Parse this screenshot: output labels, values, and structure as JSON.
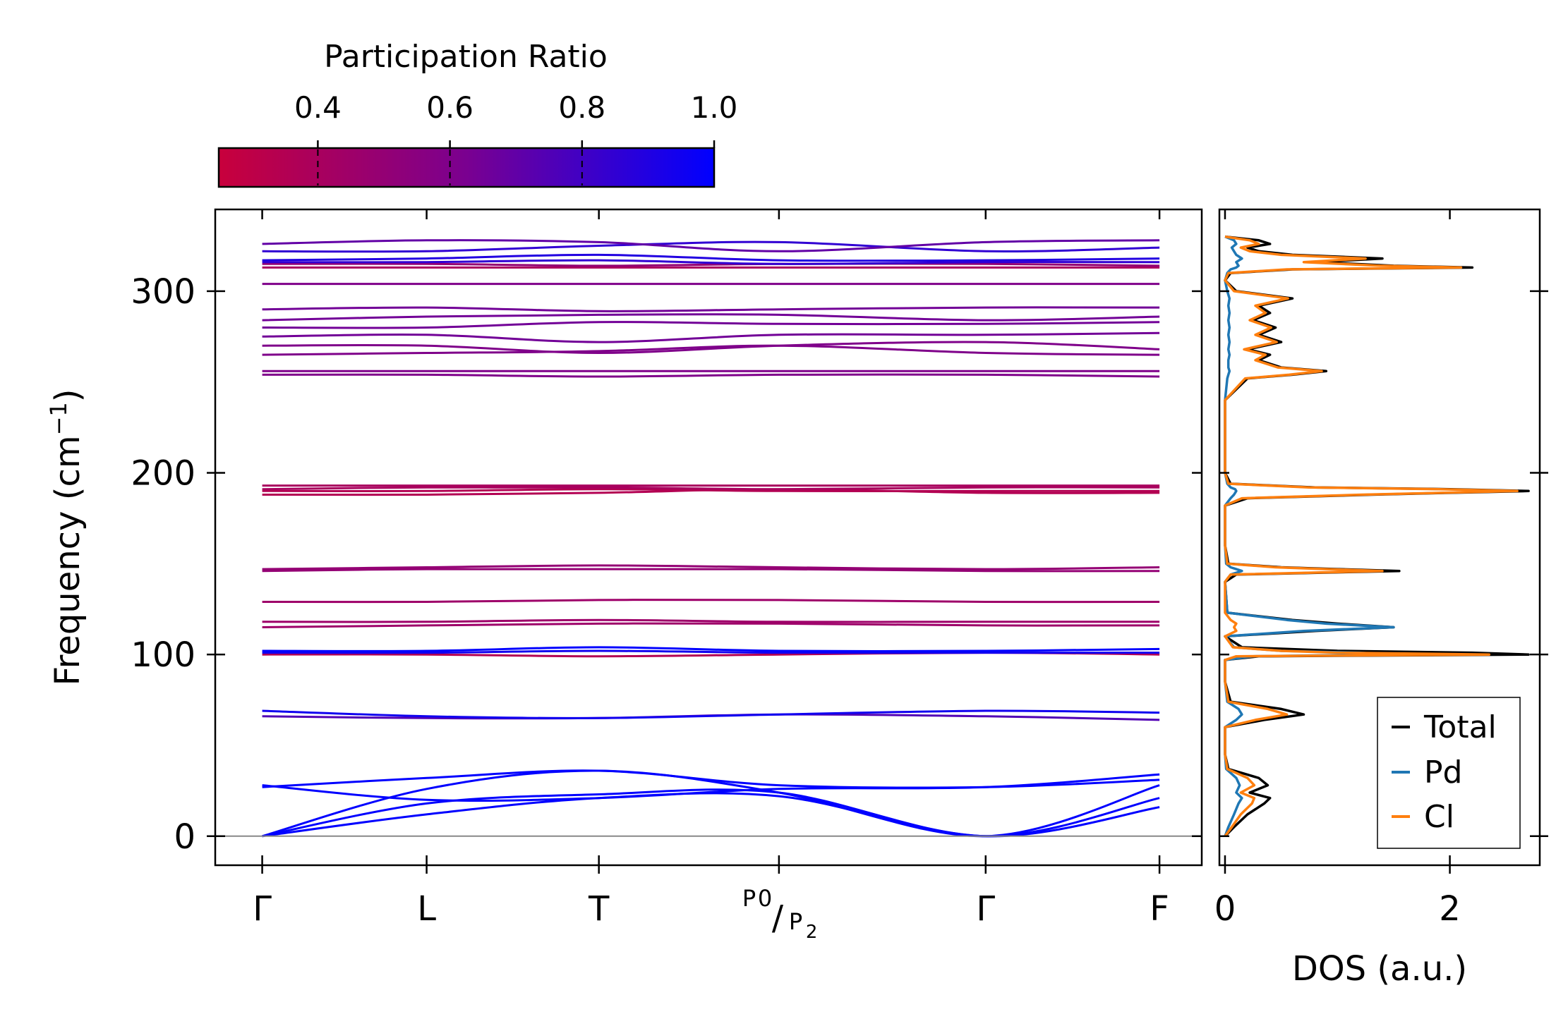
{
  "colorbar": {
    "title": "Participation Ratio",
    "ticks": [
      "0.4",
      "0.6",
      "0.8",
      "1.0"
    ],
    "range": [
      0.25,
      1.0
    ],
    "color_low": "#c8003c",
    "color_mid": "#7a0090",
    "color_high": "#0000ff"
  },
  "chart_data": [
    {
      "type": "line",
      "name": "phonon_band_structure",
      "ylabel": "Frequency (cm",
      "ylabel_sup": "−1",
      "ylabel_end": ")",
      "ylim": [
        -16,
        345
      ],
      "yticks": [
        0,
        100,
        200,
        300
      ],
      "ytick_labels": [
        "0",
        "100",
        "200",
        "300"
      ],
      "xlim": [
        -0.3,
        6.0
      ],
      "kpoints": [
        0,
        1.05,
        2.15,
        3.3,
        4.62,
        5.73
      ],
      "kpoint_labels": [
        "Γ",
        "L",
        "T",
        "P",
        "Γ",
        "F"
      ],
      "special_label": {
        "top": "P",
        "top_sub": "0",
        "sep": "/",
        "bottom": "P",
        "bottom_sub": "2"
      },
      "zero_line": 0,
      "bands": [
        {
          "x": [
            0,
            1.05,
            2.15,
            3.3,
            4.62,
            5.73
          ],
          "y": [
            0,
            12,
            21,
            22,
            0,
            16
          ],
          "pr": 1.0
        },
        {
          "x": [
            0,
            1.05,
            2.15,
            3.3,
            4.62,
            5.73
          ],
          "y": [
            0,
            18,
            23,
            24,
            0,
            21
          ],
          "pr": 1.0
        },
        {
          "x": [
            0,
            1.05,
            2.15,
            3.3,
            4.62,
            5.73
          ],
          "y": [
            0,
            26,
            36,
            24,
            0,
            28
          ],
          "pr": 1.0
        },
        {
          "x": [
            0,
            1.05,
            2.15,
            3.3,
            4.62,
            5.73
          ],
          "y": [
            27,
            32,
            36,
            28,
            27,
            31
          ],
          "pr": 1.0
        },
        {
          "x": [
            0,
            1.05,
            2.15,
            3.3,
            4.62,
            5.73
          ],
          "y": [
            28,
            20,
            21,
            26,
            27,
            34
          ],
          "pr": 1.0
        },
        {
          "x": [
            0,
            1.05,
            2.15,
            3.3,
            4.62,
            5.73
          ],
          "y": [
            66,
            65,
            65,
            67,
            66,
            64
          ],
          "pr": 0.75
        },
        {
          "x": [
            0,
            1.05,
            2.15,
            3.3,
            4.62,
            5.73
          ],
          "y": [
            69,
            66,
            65,
            67,
            69,
            68
          ],
          "pr": 0.95
        },
        {
          "x": [
            0,
            1.05,
            2.15,
            3.3,
            4.62,
            5.73
          ],
          "y": [
            100,
            100,
            99,
            100,
            101,
            100
          ],
          "pr": 0.35
        },
        {
          "x": [
            0,
            1.05,
            2.15,
            3.3,
            4.62,
            5.73
          ],
          "y": [
            101,
            101,
            102,
            101,
            101,
            101
          ],
          "pr": 0.95
        },
        {
          "x": [
            0,
            1.05,
            2.15,
            3.3,
            4.62,
            5.73
          ],
          "y": [
            102,
            102,
            104,
            102,
            102,
            103
          ],
          "pr": 1.0
        },
        {
          "x": [
            0,
            1.05,
            2.15,
            3.3,
            4.62,
            5.73
          ],
          "y": [
            115,
            116,
            117,
            117,
            116,
            116
          ],
          "pr": 0.45
        },
        {
          "x": [
            0,
            1.05,
            2.15,
            3.3,
            4.62,
            5.73
          ],
          "y": [
            118,
            118,
            119,
            118,
            118,
            118
          ],
          "pr": 0.45
        },
        {
          "x": [
            0,
            1.05,
            2.15,
            3.3,
            4.62,
            5.73
          ],
          "y": [
            129,
            129,
            130,
            130,
            129,
            129
          ],
          "pr": 0.45
        },
        {
          "x": [
            0,
            1.05,
            2.15,
            3.3,
            4.62,
            5.73
          ],
          "y": [
            146,
            147,
            147,
            147,
            146,
            146
          ],
          "pr": 0.5
        },
        {
          "x": [
            0,
            1.05,
            2.15,
            3.3,
            4.62,
            5.73
          ],
          "y": [
            147,
            148,
            149,
            148,
            147,
            148
          ],
          "pr": 0.5
        },
        {
          "x": [
            0,
            1.05,
            2.15,
            3.3,
            4.62,
            5.73
          ],
          "y": [
            188,
            188,
            189,
            191,
            189,
            189
          ],
          "pr": 0.35
        },
        {
          "x": [
            0,
            1.05,
            2.15,
            3.3,
            4.62,
            5.73
          ],
          "y": [
            190,
            190,
            191,
            190,
            190,
            190
          ],
          "pr": 0.35
        },
        {
          "x": [
            0,
            1.05,
            2.15,
            3.3,
            4.62,
            5.73
          ],
          "y": [
            191,
            192,
            192,
            191,
            192,
            192
          ],
          "pr": 0.4
        },
        {
          "x": [
            0,
            1.05,
            2.15,
            3.3,
            4.62,
            5.73
          ],
          "y": [
            193,
            193,
            193,
            193,
            193,
            193
          ],
          "pr": 0.4
        },
        {
          "x": [
            0,
            1.05,
            2.15,
            3.3,
            4.62,
            5.73
          ],
          "y": [
            254,
            254,
            253,
            254,
            254,
            253
          ],
          "pr": 0.6
        },
        {
          "x": [
            0,
            1.05,
            2.15,
            3.3,
            4.62,
            5.73
          ],
          "y": [
            256,
            256,
            256,
            256,
            256,
            256
          ],
          "pr": 0.6
        },
        {
          "x": [
            0,
            1.05,
            2.15,
            3.3,
            4.62,
            5.73
          ],
          "y": [
            265,
            266,
            267,
            270,
            266,
            265
          ],
          "pr": 0.6
        },
        {
          "x": [
            0,
            1.05,
            2.15,
            3.3,
            4.62,
            5.73
          ],
          "y": [
            270,
            270,
            266,
            270,
            272,
            268
          ],
          "pr": 0.6
        },
        {
          "x": [
            0,
            1.05,
            2.15,
            3.3,
            4.62,
            5.73
          ],
          "y": [
            275,
            276,
            272,
            276,
            276,
            277
          ],
          "pr": 0.65
        },
        {
          "x": [
            0,
            1.05,
            2.15,
            3.3,
            4.62,
            5.73
          ],
          "y": [
            280,
            280,
            283,
            282,
            282,
            283
          ],
          "pr": 0.65
        },
        {
          "x": [
            0,
            1.05,
            2.15,
            3.3,
            4.62,
            5.73
          ],
          "y": [
            284,
            286,
            287,
            287,
            284,
            286
          ],
          "pr": 0.65
        },
        {
          "x": [
            0,
            1.05,
            2.15,
            3.3,
            4.62,
            5.73
          ],
          "y": [
            290,
            291,
            289,
            290,
            291,
            291
          ],
          "pr": 0.65
        },
        {
          "x": [
            0,
            1.05,
            2.15,
            3.3,
            4.62,
            5.73
          ],
          "y": [
            304,
            304,
            304,
            304,
            304,
            304
          ],
          "pr": 0.6
        },
        {
          "x": [
            0,
            1.05,
            2.15,
            3.3,
            4.62,
            5.73
          ],
          "y": [
            313,
            313,
            313,
            313,
            313,
            313
          ],
          "pr": 0.4
        },
        {
          "x": [
            0,
            1.05,
            2.15,
            3.3,
            4.62,
            5.73
          ],
          "y": [
            315,
            315,
            314,
            315,
            315,
            314
          ],
          "pr": 0.5
        },
        {
          "x": [
            0,
            1.05,
            2.15,
            3.3,
            4.62,
            5.73
          ],
          "y": [
            316,
            316,
            317,
            315,
            316,
            316
          ],
          "pr": 0.85
        },
        {
          "x": [
            0,
            1.05,
            2.15,
            3.3,
            4.62,
            5.73
          ],
          "y": [
            317,
            318,
            320,
            317,
            317,
            318
          ],
          "pr": 0.9
        },
        {
          "x": [
            0,
            1.05,
            2.15,
            3.3,
            4.62,
            5.73
          ],
          "y": [
            322,
            322,
            325,
            327,
            322,
            324
          ],
          "pr": 0.85
        },
        {
          "x": [
            0,
            1.05,
            2.15,
            3.3,
            4.62,
            5.73
          ],
          "y": [
            326,
            328,
            327,
            322,
            327,
            328
          ],
          "pr": 0.7
        }
      ]
    },
    {
      "type": "line",
      "name": "phonon_dos",
      "xlabel": "DOS (a.u.)",
      "xlim": [
        -0.05,
        2.8
      ],
      "xticks": [
        0,
        2
      ],
      "xtick_labels": [
        "0",
        "2"
      ],
      "ylim": [
        -16,
        345
      ],
      "legend": {
        "position": "lower-right",
        "entries": [
          "Total",
          "Pd",
          "Cl"
        ]
      },
      "series": [
        {
          "name": "Total",
          "color": "#000000",
          "freq": [
            0,
            5,
            12,
            18,
            21,
            24,
            28,
            32,
            37,
            45,
            60,
            64,
            67,
            70,
            74,
            85,
            97,
            99,
            100,
            101,
            102,
            104,
            110,
            113,
            115,
            117,
            119,
            123,
            140,
            144,
            146,
            147,
            148,
            150,
            160,
            182,
            186,
            188,
            190,
            191,
            192,
            194,
            200,
            240,
            252,
            254,
            256,
            258,
            262,
            265,
            268,
            272,
            276,
            280,
            284,
            288,
            292,
            296,
            300,
            306,
            310,
            312,
            313,
            314,
            316,
            318,
            320,
            322,
            324,
            326,
            328,
            330
          ],
          "dos": [
            0,
            0.08,
            0.2,
            0.35,
            0.4,
            0.22,
            0.38,
            0.3,
            0.03,
            0,
            0,
            0.35,
            0.7,
            0.5,
            0.05,
            0,
            0,
            0.3,
            2.7,
            2.2,
            1.0,
            0.15,
            0,
            0.8,
            1.5,
            1.0,
            0.6,
            0.02,
            0,
            0.1,
            1.55,
            1.0,
            0.5,
            0.03,
            0,
            0,
            0.2,
            1.3,
            2.7,
            2.0,
            0.8,
            0.05,
            0,
            0,
            0.2,
            0.6,
            0.9,
            0.5,
            0.3,
            0.4,
            0.2,
            0.5,
            0.3,
            0.45,
            0.25,
            0.4,
            0.3,
            0.6,
            0.1,
            0,
            0.05,
            0.6,
            2.2,
            1.5,
            0.8,
            1.4,
            0.6,
            0.3,
            0.2,
            0.4,
            0.3,
            0
          ],
          "end_frac": 0
        },
        {
          "name": "Pd",
          "color": "#1f77b4",
          "freq": [
            0,
            5,
            12,
            18,
            21,
            24,
            28,
            32,
            37,
            45,
            60,
            64,
            67,
            70,
            74,
            85,
            97,
            99,
            100,
            101,
            102,
            104,
            110,
            113,
            115,
            117,
            119,
            123,
            140,
            144,
            146,
            147,
            148,
            150,
            160,
            182,
            186,
            188,
            190,
            191,
            192,
            194,
            200,
            240,
            252,
            254,
            256,
            258,
            262,
            265,
            268,
            272,
            276,
            280,
            284,
            288,
            292,
            296,
            300,
            306,
            310,
            312,
            313,
            314,
            316,
            318,
            320,
            322,
            324,
            326,
            328,
            330
          ],
          "dos": [
            0,
            0.03,
            0.08,
            0.12,
            0.15,
            0.1,
            0.13,
            0.1,
            0.01,
            0,
            0,
            0.1,
            0.15,
            0.12,
            0.02,
            0,
            0,
            0.25,
            1.45,
            1.2,
            0.5,
            0.08,
            0,
            0.7,
            1.5,
            0.9,
            0.55,
            0.02,
            0,
            0.05,
            0.15,
            0.1,
            0.05,
            0.01,
            0,
            0,
            0.05,
            0.08,
            0.1,
            0.09,
            0.05,
            0.02,
            0,
            0,
            0.02,
            0.03,
            0.04,
            0.03,
            0.03,
            0.04,
            0.03,
            0.04,
            0.03,
            0.04,
            0.03,
            0.04,
            0.03,
            0.04,
            0.02,
            0,
            0.02,
            0.05,
            0.1,
            0.12,
            0.1,
            0.15,
            0.1,
            0.08,
            0.06,
            0.1,
            0.08,
            0
          ],
          "end_frac": 0
        },
        {
          "name": "Cl",
          "color": "#ff7f0e",
          "freq": [
            0,
            5,
            12,
            18,
            21,
            24,
            28,
            32,
            37,
            45,
            60,
            64,
            67,
            70,
            74,
            85,
            97,
            99,
            100,
            101,
            102,
            104,
            110,
            113,
            115,
            117,
            119,
            123,
            140,
            144,
            146,
            147,
            148,
            150,
            160,
            182,
            186,
            188,
            190,
            191,
            192,
            194,
            200,
            240,
            252,
            254,
            256,
            258,
            262,
            265,
            268,
            272,
            276,
            280,
            284,
            288,
            292,
            296,
            300,
            306,
            310,
            312,
            313,
            314,
            316,
            318,
            320,
            322,
            324,
            326,
            328,
            330
          ],
          "dos": [
            0,
            0.06,
            0.14,
            0.24,
            0.26,
            0.14,
            0.26,
            0.2,
            0.02,
            0,
            0,
            0.27,
            0.55,
            0.38,
            0.03,
            0,
            0,
            0.1,
            2.35,
            1.0,
            0.5,
            0.07,
            0,
            0.1,
            0.08,
            0.1,
            0.05,
            0,
            0,
            0.05,
            1.4,
            0.9,
            0.45,
            0.02,
            0,
            0,
            0.15,
            1.22,
            2.6,
            1.9,
            0.75,
            0.03,
            0,
            0,
            0.18,
            0.57,
            0.86,
            0.47,
            0.27,
            0.36,
            0.17,
            0.46,
            0.27,
            0.41,
            0.22,
            0.36,
            0.27,
            0.56,
            0.08,
            0,
            0.03,
            0.55,
            2.1,
            1.38,
            0.7,
            1.25,
            0.5,
            0.22,
            0.14,
            0.3,
            0.22,
            0
          ]
        }
      ]
    }
  ]
}
